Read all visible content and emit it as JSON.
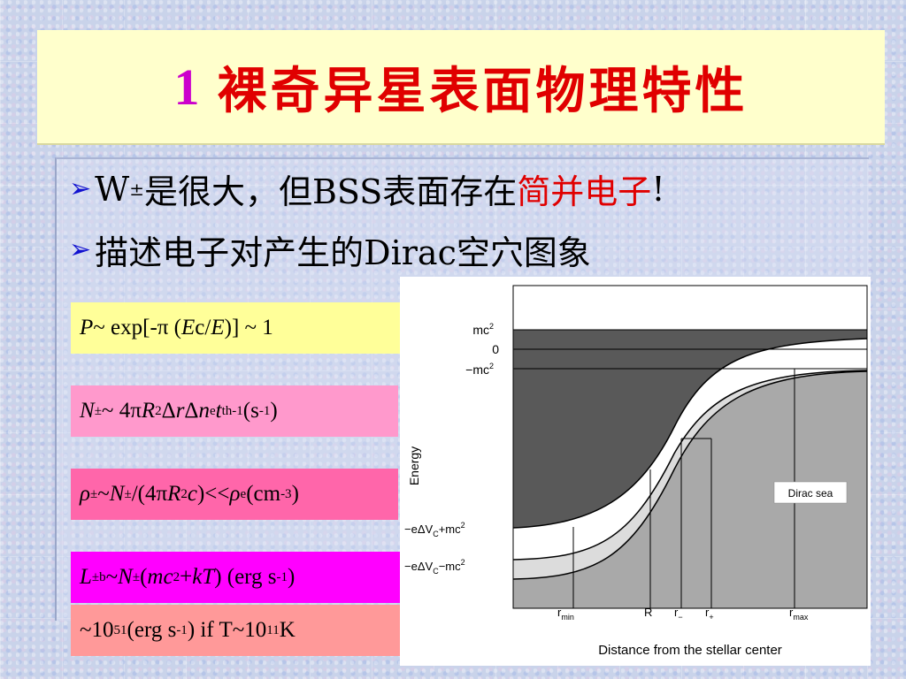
{
  "title": {
    "number": "1",
    "text": "裸奇异星表面物理特性"
  },
  "bullets": [
    {
      "w": "W",
      "w_sub": "±",
      "main": "是很大，但BSS表面存在",
      "highlight": "简并电子",
      "end": "!"
    },
    {
      "text": "描述电子对产生的Dirac空穴图象"
    }
  ],
  "formulas": {
    "f1": {
      "p": "P",
      "a": " ~ exp[-π (",
      "ec": "E",
      "c": "c/",
      "e": "E",
      "b": ")] ~ 1"
    },
    "f2": {
      "n": "N",
      "pm": "±",
      "a": " ~ 4π",
      "r": "R",
      "two": "2",
      "dr": " Δ",
      "rr": "r",
      "dn": " Δ",
      "nn": "n",
      "e": "e",
      "t": " t",
      "th": "th",
      "m1": "-1",
      "s": "  (s",
      "m1b": "-1",
      "close": ")"
    },
    "f3": {
      "rho": "ρ",
      "pm": "±",
      "tilde": "~",
      "n": "N",
      "pm2": "±",
      "a": "/(4π",
      "r": "R",
      "two": "2",
      "c": "c",
      "b": ")<<",
      "rho2": "ρ",
      "e": "e",
      "cm": "(cm",
      "m3": "-3",
      "close": ")"
    },
    "f4": {
      "l": "L",
      "pm": "±",
      "b": "b",
      "tilde": "~",
      "n": "N",
      "pm2": "±",
      "paren": "(",
      "mc": "mc",
      "two": "2",
      "plus": "+",
      "kt": "kT",
      "a": ")  (erg s",
      "m1": "-1",
      "close": ")"
    },
    "f5": {
      "a": "~10",
      "e51": "51",
      "b": "(erg s",
      "m1": "-1",
      "c": ")  if T~10",
      "e11": "11",
      "k": "K"
    }
  },
  "chart_data": {
    "type": "diagram",
    "ylabel": "Energy",
    "xlabel": "Distance from the stellar center",
    "y_ticks": [
      "mc²",
      "0",
      "−mc²",
      "−eΔV_C+mc²",
      "−eΔV_C−mc²"
    ],
    "x_ticks": [
      "r_min",
      "R",
      "r_−",
      "r_+",
      "r_max"
    ],
    "legend": "Dirac sea",
    "labels": {
      "mc2": "mc",
      "zero": "0",
      "neg_mc2": "−mc",
      "sup2": "2",
      "upper_bound": "−eΔV",
      "c_sub": "C",
      "plus_mc": "+mc",
      "minus_mc": "−mc",
      "rmin": "r",
      "rmin_sub": "min",
      "R": "R",
      "rminus": "r",
      "rminus_sub": "−",
      "rplus": "r",
      "rplus_sub": "+",
      "rmax": "r",
      "rmax_sub": "max"
    },
    "colors": {
      "dark": "#595959",
      "light": "#dcdcdc",
      "medium": "#a9a9a9"
    }
  }
}
